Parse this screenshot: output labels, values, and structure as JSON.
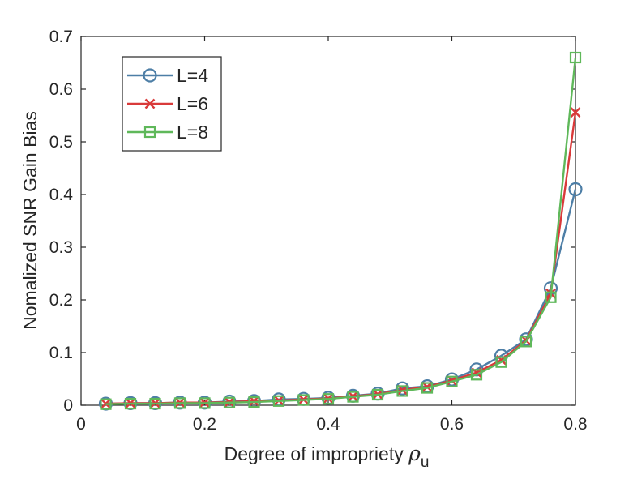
{
  "chart_data": {
    "type": "line",
    "title": "",
    "xlabel": "Degree of impropriety ",
    "xlabel_symbol": "ρ",
    "xlabel_subscript": "u",
    "ylabel": "Nomalized SNR Gain Bias",
    "xlim": [
      0,
      0.8
    ],
    "ylim": [
      0,
      0.7
    ],
    "x_ticks": [
      0,
      0.2,
      0.4,
      0.6,
      0.8
    ],
    "y_ticks": [
      0,
      0.1,
      0.2,
      0.3,
      0.4,
      0.5,
      0.6,
      0.7
    ],
    "x_tick_labels": [
      "0",
      "0.2",
      "0.4",
      "0.6",
      "0.8"
    ],
    "y_tick_labels": [
      "0",
      "0.1",
      "0.2",
      "0.3",
      "0.4",
      "0.5",
      "0.6",
      "0.7"
    ],
    "grid": false,
    "legend_position": "top-left",
    "x": [
      0.04,
      0.08,
      0.12,
      0.16,
      0.2,
      0.24,
      0.28,
      0.32,
      0.36,
      0.4,
      0.44,
      0.48,
      0.52,
      0.56,
      0.6,
      0.64,
      0.68,
      0.72,
      0.76,
      0.8
    ],
    "series": [
      {
        "name": "L=4",
        "marker": "circle",
        "color": "#4d7ea6",
        "values": [
          0.003,
          0.004,
          0.004,
          0.005,
          0.005,
          0.007,
          0.008,
          0.011,
          0.012,
          0.014,
          0.018,
          0.022,
          0.032,
          0.036,
          0.049,
          0.068,
          0.094,
          0.125,
          0.222,
          0.41
        ]
      },
      {
        "name": "L=6",
        "marker": "x",
        "color": "#d93a3a",
        "values": [
          0.003,
          0.004,
          0.004,
          0.005,
          0.005,
          0.006,
          0.008,
          0.009,
          0.011,
          0.013,
          0.017,
          0.021,
          0.029,
          0.035,
          0.047,
          0.062,
          0.086,
          0.123,
          0.212,
          0.556
        ]
      },
      {
        "name": "L=8",
        "marker": "square",
        "color": "#5fb85a",
        "values": [
          0.002,
          0.003,
          0.003,
          0.004,
          0.004,
          0.005,
          0.006,
          0.008,
          0.01,
          0.012,
          0.016,
          0.02,
          0.027,
          0.033,
          0.045,
          0.058,
          0.082,
          0.121,
          0.205,
          0.66
        ]
      }
    ]
  }
}
